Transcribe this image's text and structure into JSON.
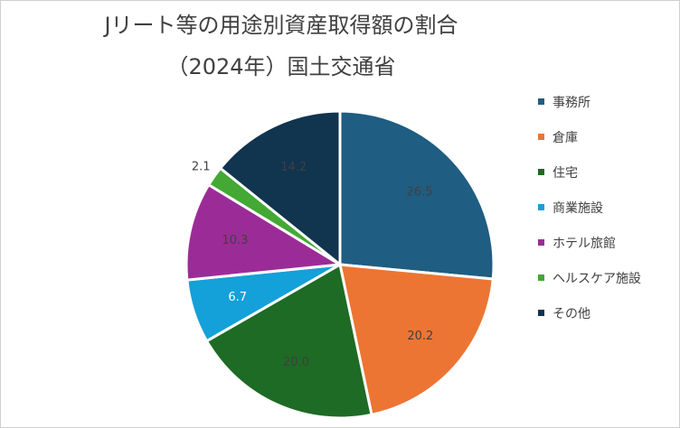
{
  "chart_data": {
    "type": "pie",
    "title_line1": "Jリート等の用途別資産取得額の割合",
    "title_line2": "（2024年）国土交通省",
    "legend_position": "right",
    "slices": [
      {
        "name": "事務所",
        "value": 26.5,
        "label": "26.5",
        "color": "#1f5d82"
      },
      {
        "name": "倉庫",
        "value": 20.2,
        "label": "20.2",
        "color": "#ec7533"
      },
      {
        "name": "住宅",
        "value": 20.0,
        "label": "20.0",
        "color": "#1e6b25"
      },
      {
        "name": "商業施設",
        "value": 6.7,
        "label": "6.7",
        "color": "#14a0d8"
      },
      {
        "name": "ホテル旅館",
        "value": 10.3,
        "label": "10.3",
        "color": "#9b2c97"
      },
      {
        "name": "ヘルスケア施設",
        "value": 2.1,
        "label": "2.1",
        "color": "#44a834"
      },
      {
        "name": "その他",
        "value": 14.2,
        "label": "14.2",
        "color": "#11344f"
      }
    ]
  }
}
